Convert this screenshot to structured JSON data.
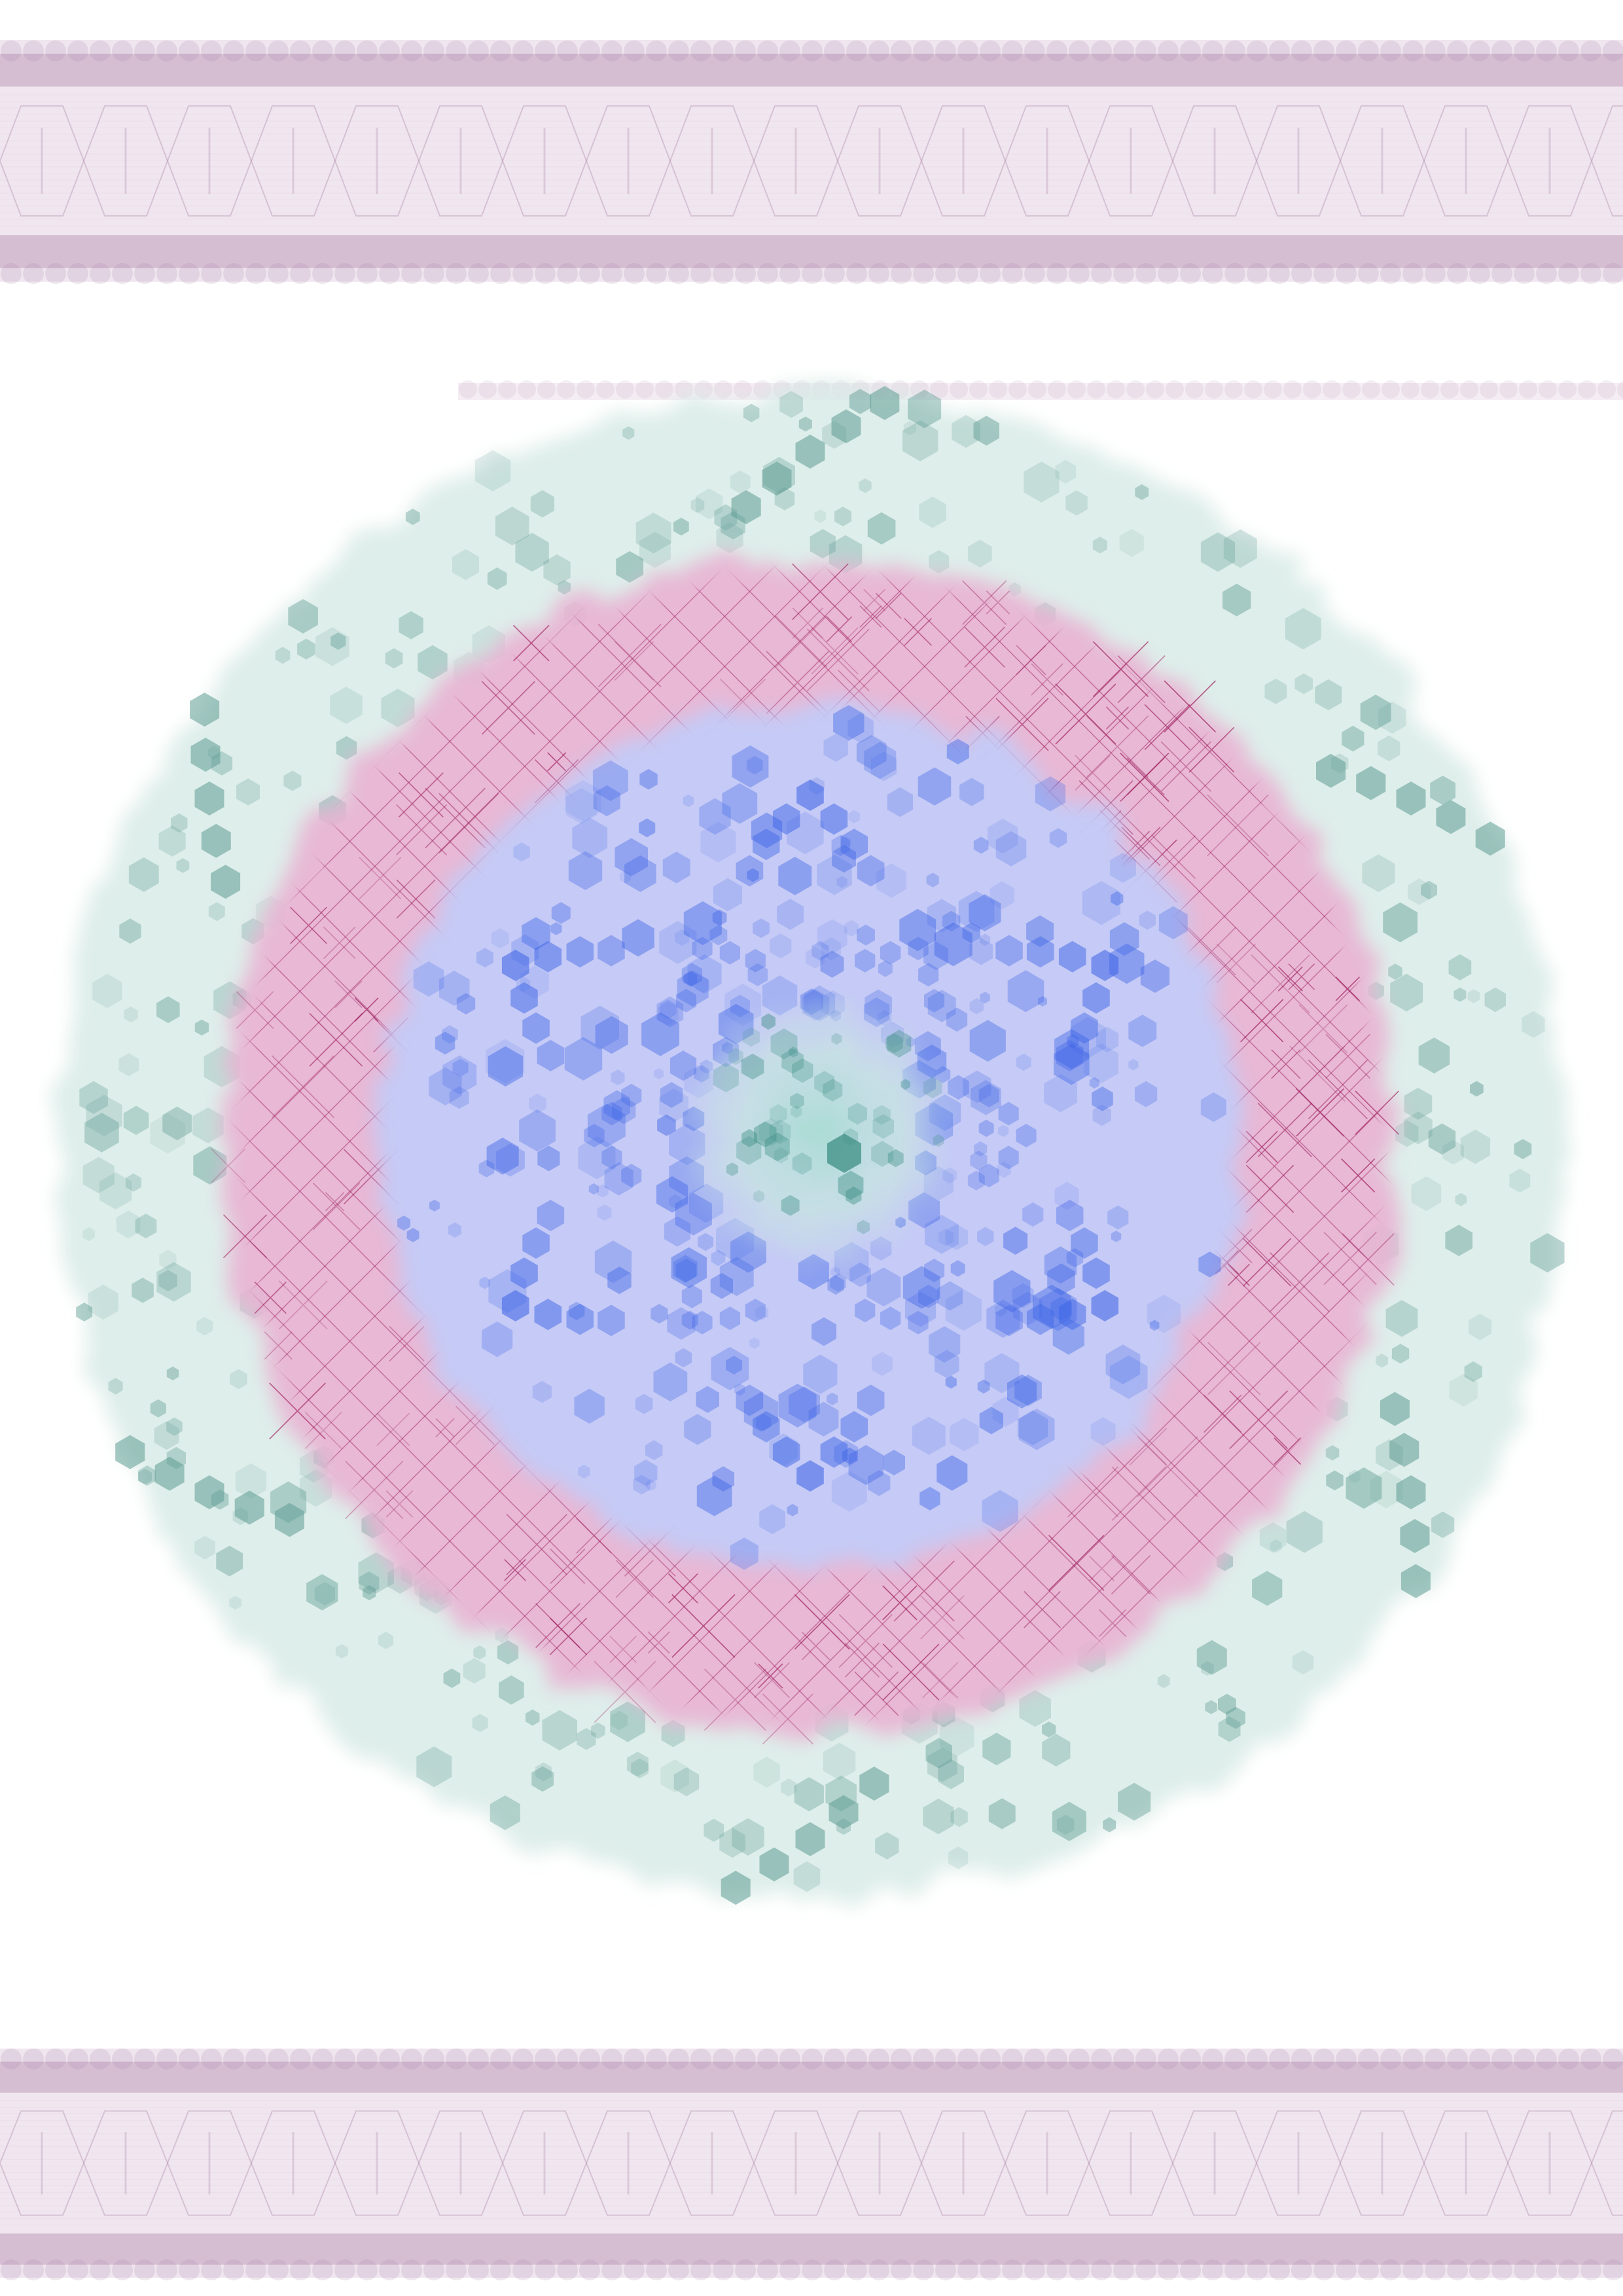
{
  "artwork": {
    "palette": {
      "background": "#ffffff",
      "lace_band": "#c9a4c4",
      "lace_band_dark": "#a77fa4",
      "outer_ring": "#d8ebe6",
      "outer_hex": "#5f9c94",
      "pink_ring": "#e6a9cf",
      "star_mesh": "#9c1a5a",
      "inner_disc": "#b9c3f7",
      "inner_hex": "#3b63e6",
      "center_glow": "#bfe3dd",
      "center_hex": "#3d8f86"
    },
    "motifs": [
      "lace-band-top",
      "lace-strip-upper",
      "hexagon-medallion",
      "lace-band-bottom"
    ]
  }
}
